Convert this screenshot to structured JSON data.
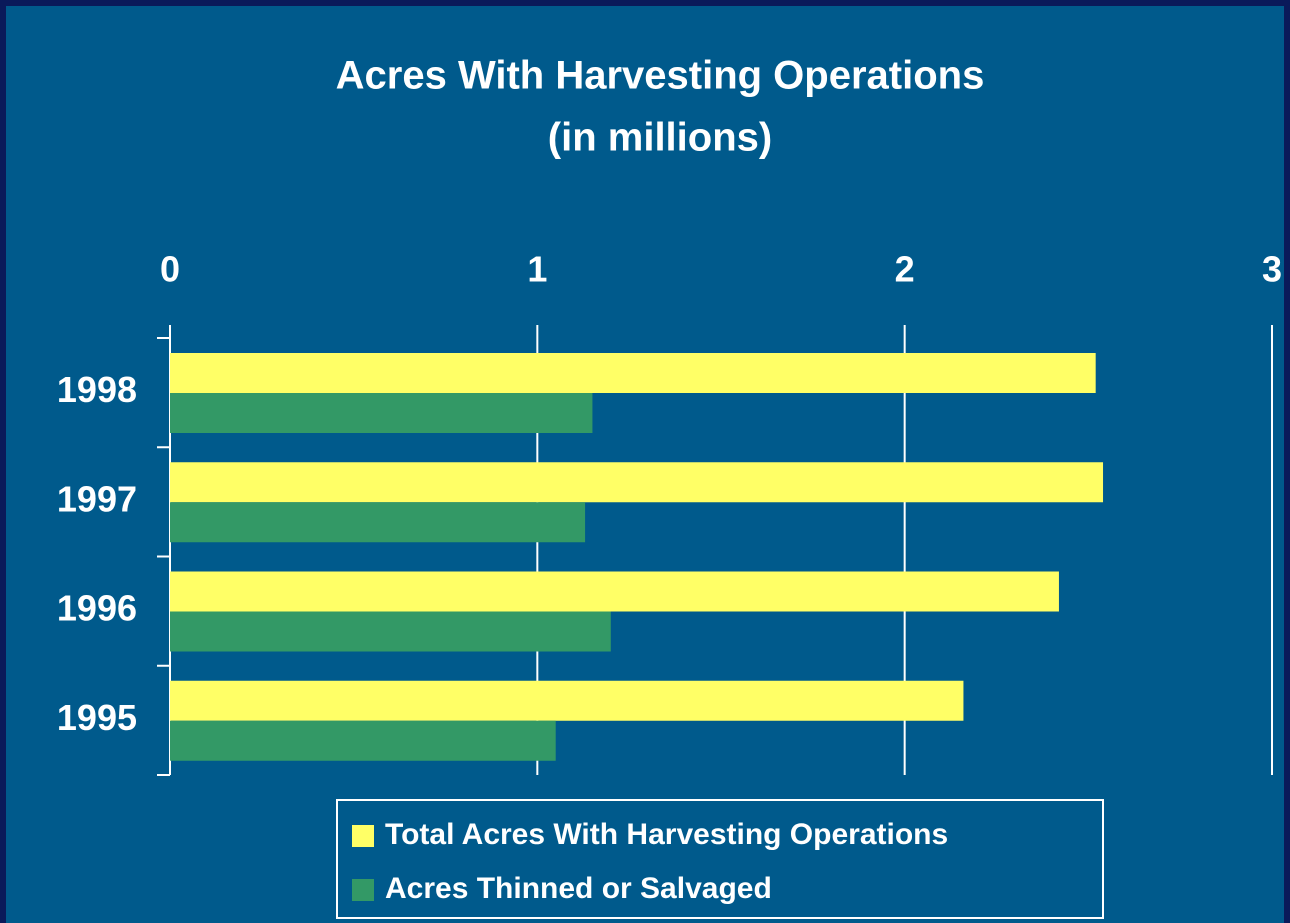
{
  "chart_data": {
    "type": "barh",
    "title": "Acres With Harvesting Operations",
    "subtitle": "(in millions)",
    "categories": [
      "1998",
      "1997",
      "1996",
      "1995"
    ],
    "series": [
      {
        "name": "Total Acres With Harvesting Operations",
        "color": "#ffff66",
        "values": [
          2.52,
          2.54,
          2.42,
          2.16
        ]
      },
      {
        "name": "Acres Thinned or Salvaged",
        "color": "#339966",
        "values": [
          1.15,
          1.13,
          1.2,
          1.05
        ]
      }
    ],
    "xlim": [
      0,
      3
    ],
    "xticks": [
      0,
      1,
      2,
      3
    ],
    "grid": true
  }
}
